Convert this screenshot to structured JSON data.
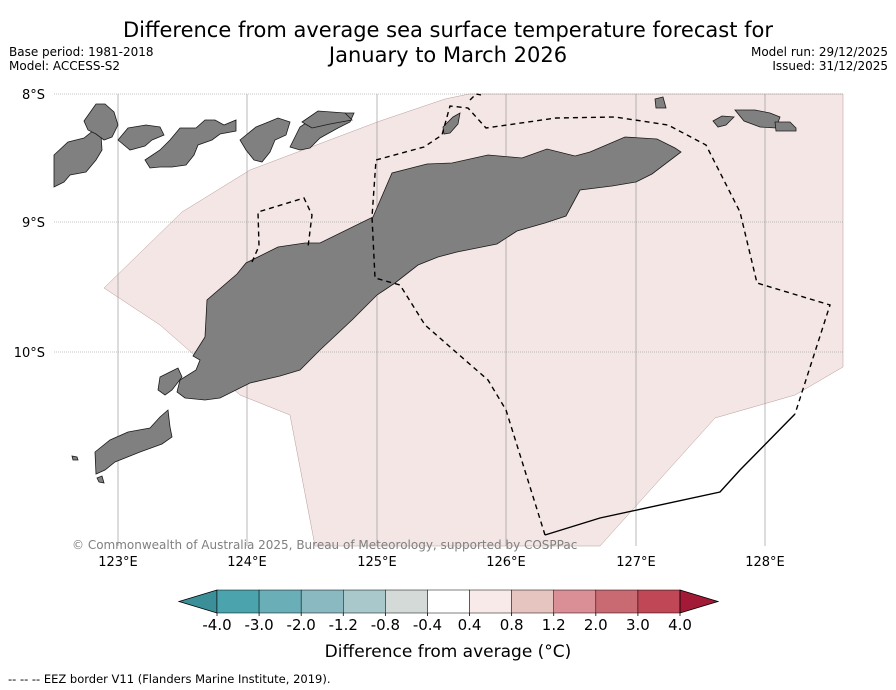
{
  "header": {
    "title_line1": "Difference from average sea surface temperature forecast for",
    "title_line2": "January to March 2026",
    "base_period": "Base period: 1981-2018",
    "model": "Model: ACCESS-S2",
    "model_run": "Model run: 29/12/2025",
    "issued": "Issued: 31/12/2025"
  },
  "map": {
    "lat_labels": [
      "8°S",
      "9°S",
      "10°S"
    ],
    "lon_labels": [
      "123°E",
      "124°E",
      "125°E",
      "126°E",
      "127°E",
      "128°E"
    ],
    "copyright": "© Commonwealth of Australia 2025, Bureau of Meteorology, supported by COSPPac",
    "ocean_fill_color": "#f3e6e4",
    "land_color": "#808080"
  },
  "colorbar": {
    "ticks": [
      "-4.0",
      "-3.0",
      "-2.0",
      "-1.2",
      "-0.8",
      "-0.4",
      "0.4",
      "0.8",
      "1.2",
      "2.0",
      "3.0",
      "4.0"
    ],
    "colors": [
      "#3a8f98",
      "#4aa3ad",
      "#6aaeb8",
      "#8bb9c2",
      "#a9c8cb",
      "#d3dad8",
      "#ffffff",
      "#f7eae8",
      "#e6c4bf",
      "#d98f95",
      "#c96a72",
      "#bf4756",
      "#a31a36"
    ],
    "label": "Difference from average (°C)"
  },
  "legend": {
    "eez_label": "-- -- -- EEZ border V11 (Flanders Marine Institute, 2019)."
  }
}
